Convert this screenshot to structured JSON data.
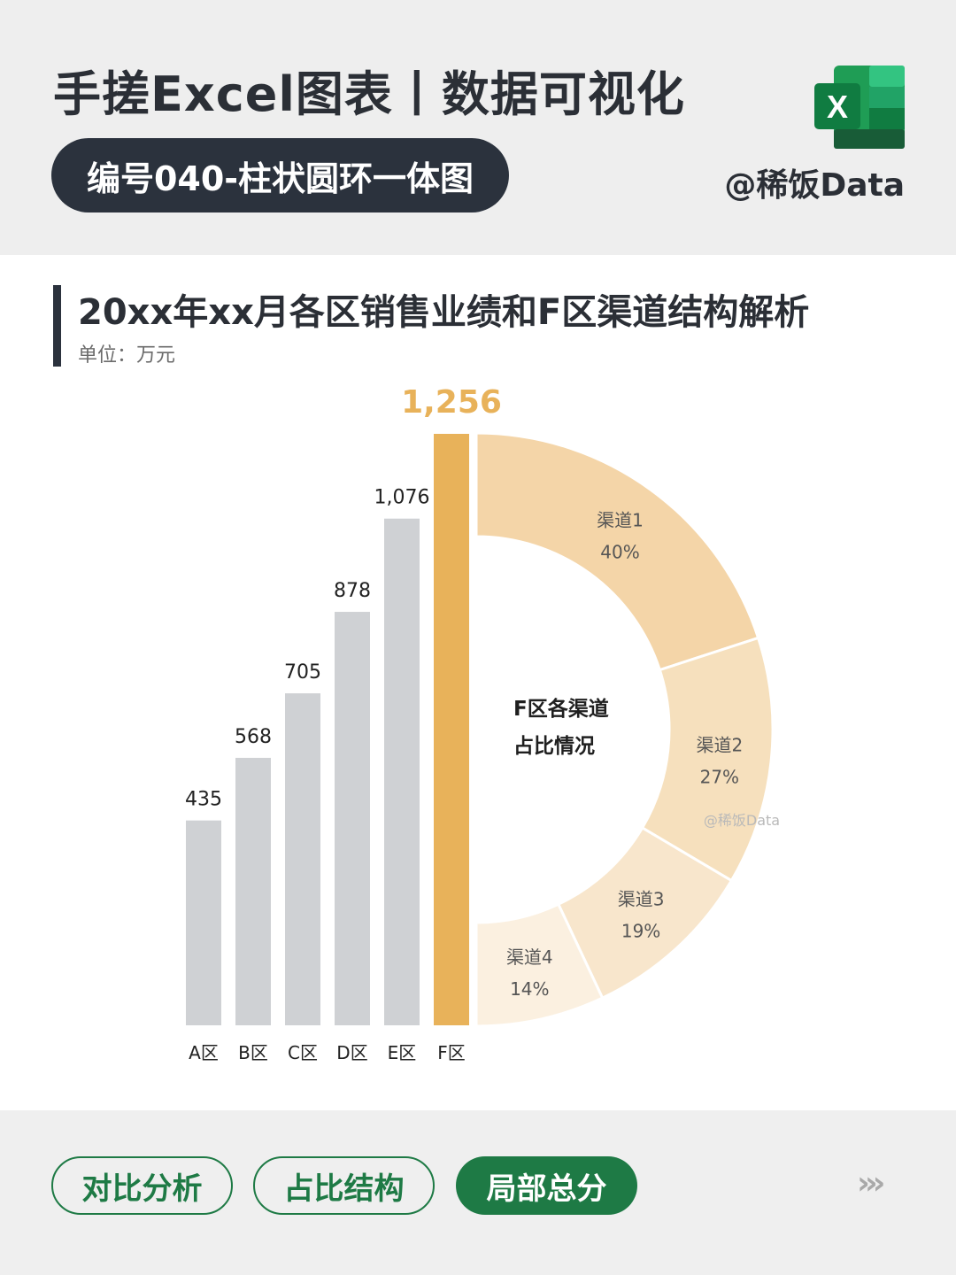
{
  "header": {
    "title": "手搓Excel图表丨数据可视化",
    "code_label": "编号040-柱状圆环一体图",
    "brand": "@稀饭Data",
    "icon": "excel-icon",
    "icon_letter": "X"
  },
  "chart_title": "20xx年xx月各区销售业绩和F区渠道结构解析",
  "unit_label": "单位：万元",
  "chart_data": [
    {
      "type": "bar",
      "categories": [
        "A区",
        "B区",
        "C区",
        "D区",
        "E区",
        "F区"
      ],
      "values": [
        435,
        568,
        705,
        878,
        1076,
        1256
      ],
      "value_labels": [
        "435",
        "568",
        "705",
        "878",
        "1,076",
        "1,256"
      ],
      "highlight": "F区",
      "ylim": [
        0,
        1256
      ],
      "colors": {
        "bar": "#cfd1d4",
        "highlight": "#e8b25a"
      }
    },
    {
      "type": "pie",
      "title": "F区各渠道\n占比情况",
      "slices": [
        {
          "label": "渠道1",
          "value": 40,
          "text": "40%",
          "color": "#f4d5a8"
        },
        {
          "label": "渠道2",
          "value": 27,
          "text": "27%",
          "color": "#f6e0bd"
        },
        {
          "label": "渠道3",
          "value": 19,
          "text": "19%",
          "color": "#f8e6cc"
        },
        {
          "label": "渠道4",
          "value": 14,
          "text": "14%",
          "color": "#fbf0e0"
        }
      ],
      "watermark": "@稀饭Data"
    }
  ],
  "footer": {
    "tags": [
      "对比分析",
      "占比结构",
      "局部总分"
    ],
    "active_tag": "局部总分",
    "more_icon": "chevrons-right-icon",
    "more_text": "›››"
  },
  "colors": {
    "dark": "#2b323d",
    "accent_green": "#1e7a45",
    "accent_gold": "#e8b25a"
  }
}
